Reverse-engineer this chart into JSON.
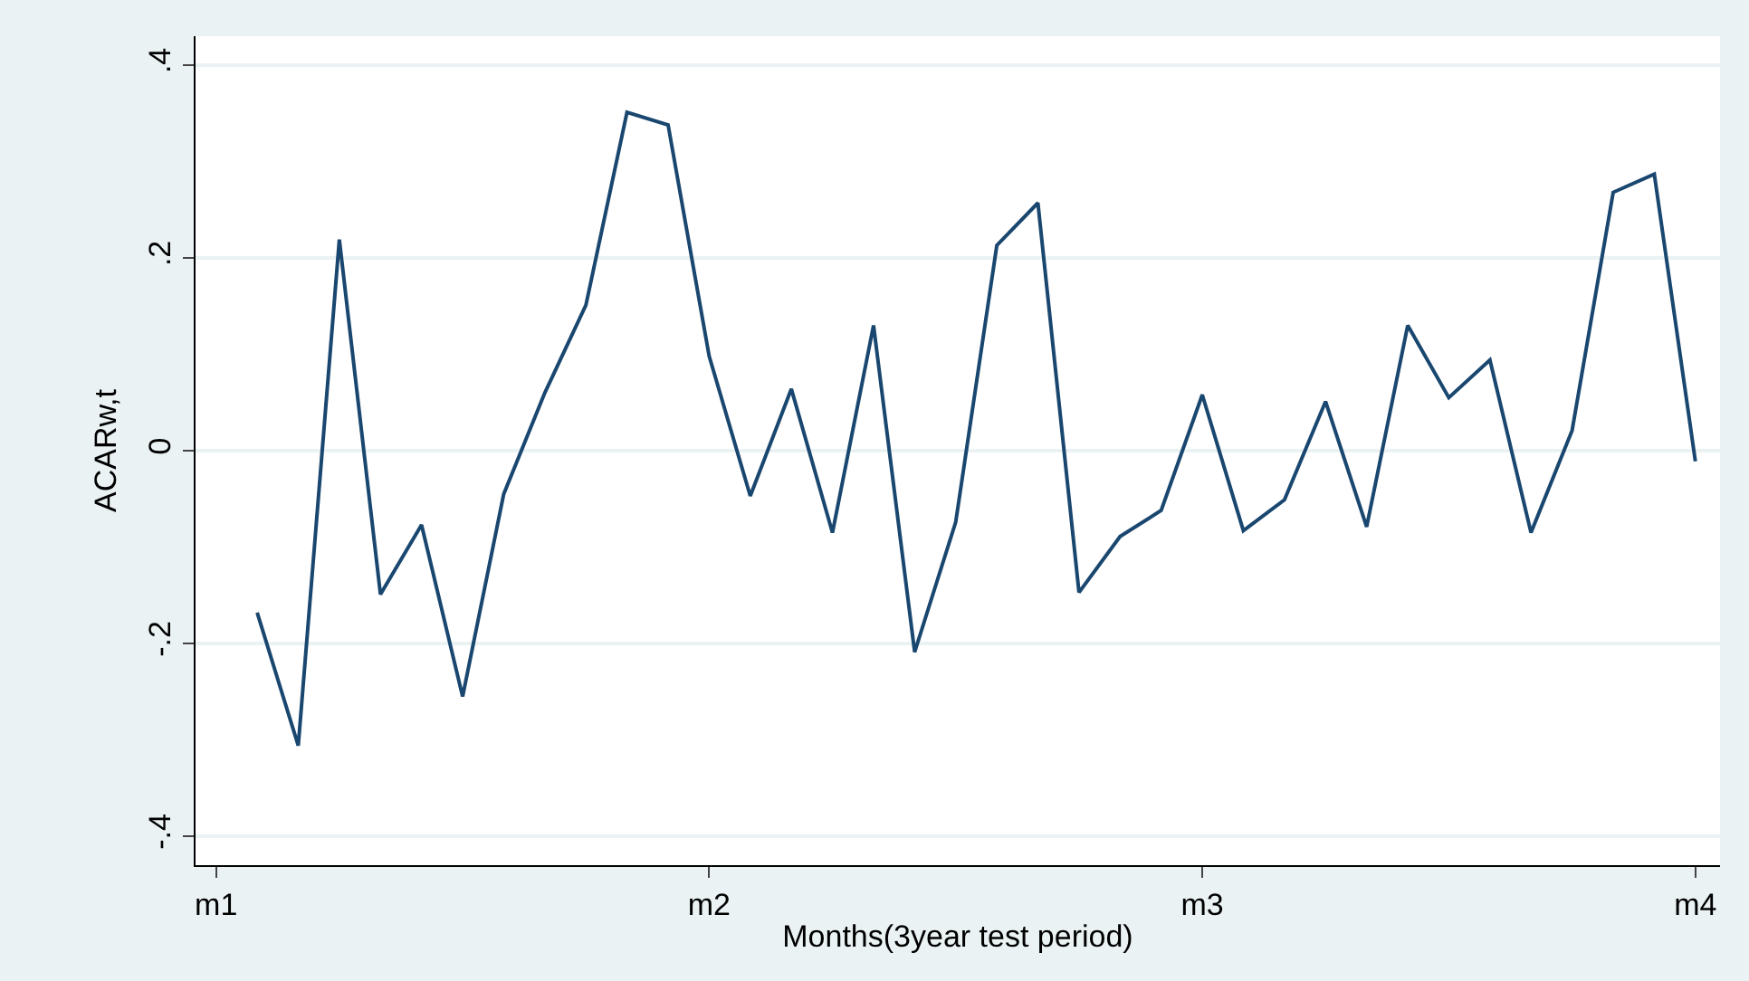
{
  "chart_data": {
    "type": "line",
    "xlabel": "Months(3year test period)",
    "ylabel": "ACARw,t",
    "categories": [
      "m1",
      null,
      null,
      null,
      null,
      null,
      null,
      null,
      null,
      null,
      null,
      null,
      "m2",
      null,
      null,
      null,
      null,
      null,
      null,
      null,
      null,
      null,
      null,
      null,
      "m3",
      null,
      null,
      null,
      null,
      null,
      null,
      null,
      null,
      null,
      null,
      null,
      "m4"
    ],
    "series": [
      {
        "color": "#1a476f",
        "values": [
          null,
          -0.168,
          -0.306,
          0.219,
          -0.149,
          -0.077,
          -0.255,
          -0.045,
          0.06,
          0.151,
          0.351,
          0.338,
          0.098,
          -0.047,
          0.064,
          -0.085,
          0.13,
          -0.209,
          -0.074,
          0.213,
          0.257,
          -0.147,
          -0.089,
          -0.062,
          0.058,
          -0.083,
          -0.051,
          0.051,
          -0.079,
          0.13,
          0.055,
          0.094,
          -0.085,
          0.021,
          0.268,
          0.287,
          -0.011
        ]
      }
    ],
    "ylim": [
      -0.43,
      0.43
    ],
    "yticks": [
      {
        "value": -0.4,
        "label": "-.4"
      },
      {
        "value": -0.2,
        "label": "-.2"
      },
      {
        "value": 0,
        "label": "0"
      },
      {
        "value": 0.2,
        "label": ".2"
      },
      {
        "value": 0.4,
        "label": ".4"
      }
    ],
    "grid": "y",
    "line_style": "solid"
  }
}
